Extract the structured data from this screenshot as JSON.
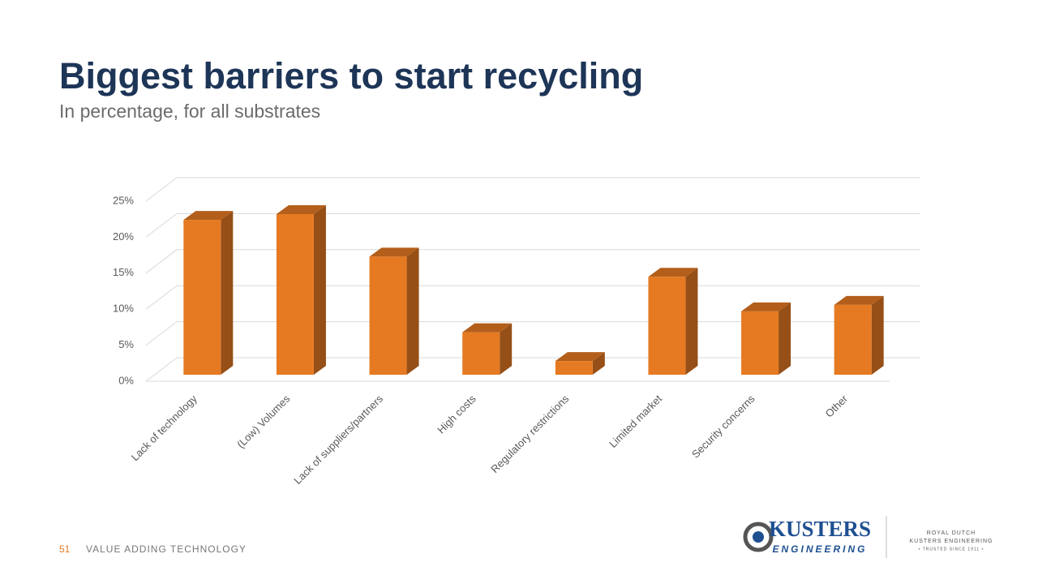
{
  "chart_data": {
    "type": "bar",
    "title": "Biggest barriers to start recycling",
    "subtitle": "In percentage, for all substrates",
    "categories": [
      "Lack of technology",
      "(Low) Volumes",
      "Lack of suppliers/partners",
      "High costs",
      "Regulatory restrictions",
      "Limited market",
      "Security concerns",
      "Other"
    ],
    "values": [
      21.5,
      22.3,
      16.4,
      5.9,
      1.9,
      13.6,
      8.8,
      9.7
    ],
    "color": "#e67a22",
    "ylim": [
      0,
      25
    ],
    "yticks": [
      {
        "value": 0,
        "label": "0%"
      },
      {
        "value": 5,
        "label": "5%"
      },
      {
        "value": 10,
        "label": "10%"
      },
      {
        "value": 15,
        "label": "15%"
      },
      {
        "value": 20,
        "label": "20%"
      },
      {
        "value": 25,
        "label": "25%"
      }
    ],
    "grid": true
  },
  "footer": {
    "page": "51",
    "text": "VALUE ADDING TECHNOLOGY"
  },
  "logo": {
    "name": "KUSTERS",
    "sub": "ENGINEERING",
    "royal": "ROYAL DUTCH",
    "company": "KUSTERS ENGINEERING",
    "since": "• TRUSTED SINCE 1911 •"
  }
}
